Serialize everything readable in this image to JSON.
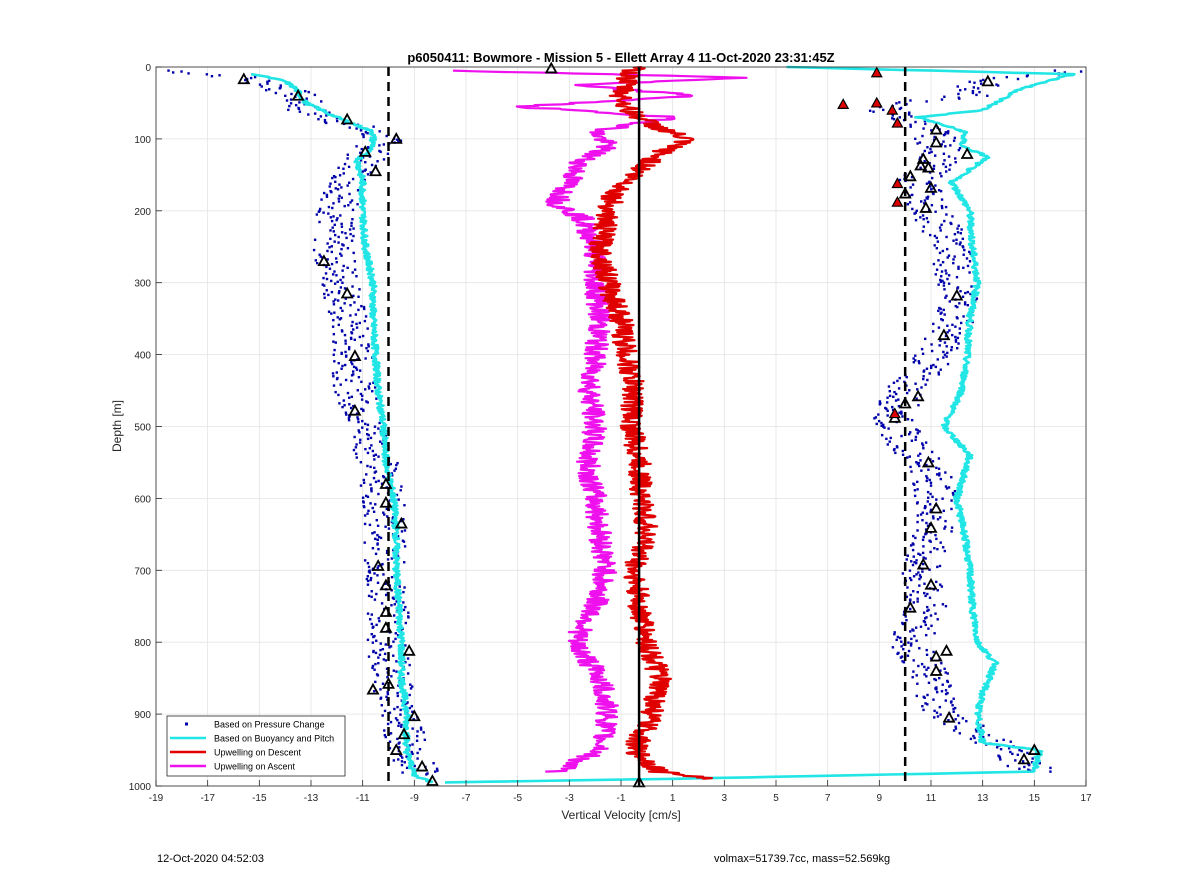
{
  "chart_data": {
    "type": "scatter",
    "title": "p6050411: Bowmore - Mission 5 - Ellett Array 4 11-Oct-2020 23:31:45Z",
    "xlabel": "Vertical Velocity [cm/s]",
    "ylabel": "Depth [m]",
    "xlim": [
      -19,
      17
    ],
    "ylim": [
      0,
      1000
    ],
    "y_reversed": true,
    "x_ticks": [
      -19,
      -17,
      -15,
      -13,
      -11,
      -9,
      -7,
      -5,
      -3,
      -1,
      1,
      3,
      5,
      7,
      9,
      11,
      13,
      15,
      17
    ],
    "y_ticks": [
      0,
      100,
      200,
      300,
      400,
      500,
      600,
      700,
      800,
      900,
      1000
    ],
    "grid": true,
    "legend_position": "bottom-left",
    "reference_lines": [
      {
        "style": "dashed",
        "x": -10
      },
      {
        "style": "solid",
        "x": -0.3
      },
      {
        "style": "dashed",
        "x": 10
      }
    ],
    "series": [
      {
        "name": "Based on Pressure Change",
        "color": "#0000aa",
        "marker": "dot",
        "profiles": [
          {
            "depth": [
              5,
              15,
              25,
              40,
              60,
              80,
              100,
              130,
              160,
              200,
              250,
              300,
              350,
              400,
              450,
              500,
              550,
              600,
              650,
              700,
              750,
              800,
              850,
              900,
              950,
              985
            ],
            "velocity": [
              -18.5,
              -15.5,
              -14.5,
              -13.5,
              -13.2,
              -11.5,
              -10.2,
              -11.0,
              -11.5,
              -12.0,
              -12.2,
              -11.8,
              -11.6,
              -11.4,
              -11.3,
              -10.8,
              -10.4,
              -10.2,
              -10.1,
              -10.2,
              -10.0,
              -10.0,
              -9.9,
              -9.6,
              -9.2,
              -8.8
            ]
          },
          {
            "depth": [
              5,
              20,
              40,
              55,
              90,
              120,
              160,
              200,
              250,
              300,
              350,
              400,
              450,
              490,
              520,
              560,
              600,
              650,
              700,
              750,
              800,
              850,
              900,
              950,
              980
            ],
            "velocity": [
              16.5,
              13.0,
              12.5,
              9.0,
              11.0,
              11.5,
              10.5,
              11.0,
              11.8,
              12.0,
              12.0,
              11.2,
              10.0,
              9.5,
              10.0,
              11.0,
              11.2,
              11.0,
              10.5,
              10.8,
              10.2,
              11.0,
              11.5,
              14.0,
              15.0
            ]
          }
        ]
      },
      {
        "name": "Based on Buoyancy and Pitch",
        "color": "#22e5e5",
        "marker": "line",
        "profiles": [
          {
            "depth": [
              10,
              20,
              30,
              50,
              70,
              90,
              110,
              130,
              160,
              200,
              250,
              300,
              350,
              400,
              450,
              500,
              550,
              600,
              650,
              700,
              750,
              800,
              850,
              900,
              950,
              985,
              995
            ],
            "velocity": [
              -15.2,
              -14.0,
              -13.6,
              -13.2,
              -12.0,
              -10.6,
              -10.6,
              -11.2,
              -11.0,
              -11.0,
              -10.9,
              -10.6,
              -10.6,
              -10.5,
              -10.4,
              -10.2,
              -10.1,
              -9.8,
              -9.7,
              -9.7,
              -9.6,
              -9.5,
              -9.5,
              -9.3,
              -9.3,
              -9.0,
              -8.3
            ]
          },
          {
            "depth": [
              0,
              10,
              30,
              60,
              70,
              90,
              110,
              125,
              160,
              200,
              250,
              300,
              350,
              400,
              450,
              500,
              540,
              600,
              650,
              700,
              750,
              800,
              830,
              870,
              900,
              940,
              950,
              980,
              990,
              995
            ],
            "velocity": [
              5.5,
              16.5,
              14.5,
              13.0,
              10.5,
              12.3,
              12.2,
              13.2,
              11.8,
              12.5,
              12.6,
              12.8,
              12.5,
              12.4,
              12.2,
              11.5,
              12.5,
              12.0,
              12.3,
              12.5,
              12.6,
              12.8,
              13.5,
              13.0,
              12.8,
              13.0,
              15.2,
              15.0,
              1.0,
              -7.8
            ]
          }
        ]
      },
      {
        "name": "Upwelling on Descent",
        "color": "#e00000",
        "marker": "line",
        "profiles": [
          {
            "depth": [
              0,
              20,
              40,
              60,
              80,
              100,
              120,
              150,
              180,
              200,
              250,
              300,
              350,
              400,
              450,
              500,
              550,
              600,
              650,
              700,
              750,
              800,
              850,
              900,
              950,
              980,
              990
            ],
            "velocity": [
              -0.5,
              -0.8,
              -1.0,
              -0.7,
              0.2,
              1.5,
              0.5,
              -0.5,
              -1.3,
              -1.5,
              -1.8,
              -1.5,
              -1.0,
              -0.8,
              -0.5,
              -0.6,
              -0.3,
              -0.2,
              0.0,
              -0.5,
              -0.3,
              0.0,
              0.5,
              0.2,
              -0.5,
              0.5,
              2.5
            ]
          }
        ]
      },
      {
        "name": "Upwelling on Ascent",
        "color": "#ee11ee",
        "marker": "line",
        "profiles": [
          {
            "depth": [
              5,
              15,
              25,
              40,
              55,
              70,
              90,
              110,
              130,
              160,
              190,
              210,
              250,
              300,
              350,
              400,
              450,
              500,
              550,
              600,
              650,
              700,
              750,
              800,
              850,
              900,
              950,
              980
            ],
            "velocity": [
              -7.5,
              4.0,
              -3.0,
              2.0,
              -5.0,
              1.0,
              -2.0,
              -1.5,
              -2.5,
              -3.0,
              -3.5,
              -2.5,
              -2.0,
              -2.0,
              -1.8,
              -2.0,
              -2.2,
              -2.0,
              -2.3,
              -2.0,
              -1.8,
              -1.6,
              -2.0,
              -2.8,
              -1.8,
              -1.5,
              -1.8,
              -3.5
            ]
          }
        ]
      },
      {
        "name": "",
        "color": "#000000",
        "marker": "open-triangle",
        "points": [
          {
            "velocity": -15.6,
            "depth": 17
          },
          {
            "velocity": -13.5,
            "depth": 40
          },
          {
            "velocity": -11.6,
            "depth": 73
          },
          {
            "velocity": -9.7,
            "depth": 100
          },
          {
            "velocity": -10.9,
            "depth": 118
          },
          {
            "velocity": -10.5,
            "depth": 145
          },
          {
            "velocity": -12.5,
            "depth": 270
          },
          {
            "velocity": -11.6,
            "depth": 315
          },
          {
            "velocity": -11.3,
            "depth": 402
          },
          {
            "velocity": -11.3,
            "depth": 478
          },
          {
            "velocity": -10.1,
            "depth": 580
          },
          {
            "velocity": -10.1,
            "depth": 606
          },
          {
            "velocity": -9.5,
            "depth": 635
          },
          {
            "velocity": -10.4,
            "depth": 694
          },
          {
            "velocity": -10.1,
            "depth": 721
          },
          {
            "velocity": -10.1,
            "depth": 758
          },
          {
            "velocity": -10.1,
            "depth": 780
          },
          {
            "velocity": -9.2,
            "depth": 812
          },
          {
            "velocity": -10.0,
            "depth": 858
          },
          {
            "velocity": -10.6,
            "depth": 866
          },
          {
            "velocity": -9.0,
            "depth": 903
          },
          {
            "velocity": -9.4,
            "depth": 928
          },
          {
            "velocity": -9.7,
            "depth": 950
          },
          {
            "velocity": -8.7,
            "depth": 973
          },
          {
            "velocity": -8.3,
            "depth": 993
          },
          {
            "velocity": -3.7,
            "depth": 2
          },
          {
            "velocity": -0.3,
            "depth": 995
          },
          {
            "velocity": 13.2,
            "depth": 20
          },
          {
            "velocity": 11.2,
            "depth": 87
          },
          {
            "velocity": 11.2,
            "depth": 105
          },
          {
            "velocity": 12.4,
            "depth": 121
          },
          {
            "velocity": 10.7,
            "depth": 128
          },
          {
            "velocity": 10.6,
            "depth": 137
          },
          {
            "velocity": 10.9,
            "depth": 140
          },
          {
            "velocity": 10.2,
            "depth": 152
          },
          {
            "velocity": 11.0,
            "depth": 168
          },
          {
            "velocity": 10.0,
            "depth": 176
          },
          {
            "velocity": 10.8,
            "depth": 196
          },
          {
            "velocity": 12.0,
            "depth": 318
          },
          {
            "velocity": 11.5,
            "depth": 373
          },
          {
            "velocity": 10.5,
            "depth": 458
          },
          {
            "velocity": 10.0,
            "depth": 468
          },
          {
            "velocity": 9.6,
            "depth": 488
          },
          {
            "velocity": 10.9,
            "depth": 550
          },
          {
            "velocity": 11.2,
            "depth": 614
          },
          {
            "velocity": 11.0,
            "depth": 641
          },
          {
            "velocity": 10.7,
            "depth": 692
          },
          {
            "velocity": 11.0,
            "depth": 720
          },
          {
            "velocity": 10.2,
            "depth": 752
          },
          {
            "velocity": 11.6,
            "depth": 812
          },
          {
            "velocity": 11.2,
            "depth": 820
          },
          {
            "velocity": 11.2,
            "depth": 840
          },
          {
            "velocity": 11.7,
            "depth": 905
          },
          {
            "velocity": 15.0,
            "depth": 950
          },
          {
            "velocity": 14.6,
            "depth": 963
          }
        ]
      },
      {
        "name": "",
        "color": "#dd0000",
        "marker": "filled-triangle",
        "points": [
          {
            "velocity": 8.9,
            "depth": 8
          },
          {
            "velocity": 7.6,
            "depth": 52
          },
          {
            "velocity": 8.9,
            "depth": 50
          },
          {
            "velocity": 9.5,
            "depth": 60
          },
          {
            "velocity": 9.7,
            "depth": 78
          },
          {
            "velocity": 9.7,
            "depth": 162
          },
          {
            "velocity": 9.7,
            "depth": 188
          },
          {
            "velocity": 9.6,
            "depth": 482
          }
        ]
      }
    ]
  },
  "footer": {
    "left": "12-Oct-2020 04:52:03",
    "right": "volmax=51739.7cc, mass=52.569kg"
  }
}
